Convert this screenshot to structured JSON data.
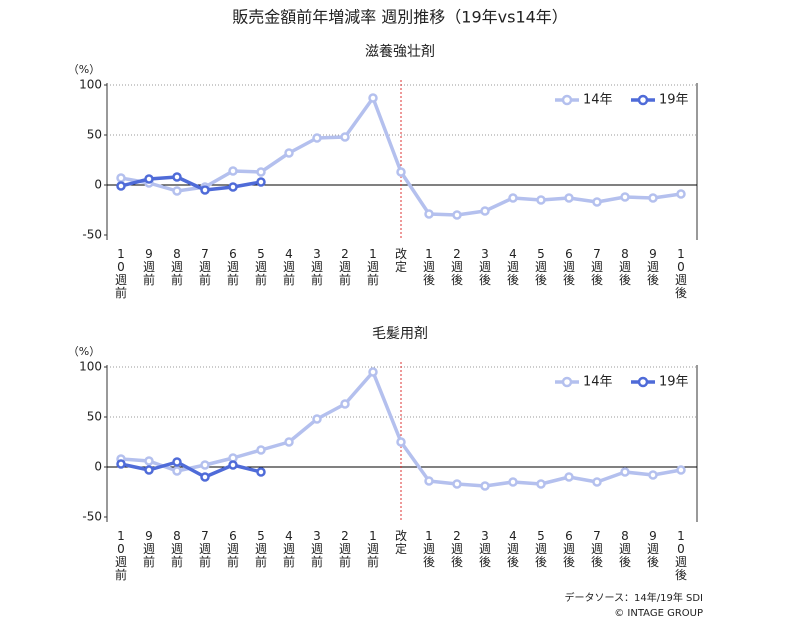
{
  "title": "販売金額前年増減率 週別推移（19年vs14年）",
  "source": "データソース：14年/19年 SDI",
  "copyright": "© INTAGE GROUP",
  "chart_data": [
    {
      "type": "line",
      "title": "滋養強壮剤",
      "ylabel": "（%）",
      "categories": [
        "10週前",
        "9週前",
        "8週前",
        "7週前",
        "6週前",
        "5週前",
        "4週前",
        "3週前",
        "2週前",
        "1週前",
        "改定",
        "1週後",
        "2週後",
        "3週後",
        "4週後",
        "5週後",
        "6週後",
        "7週後",
        "8週後",
        "9週後",
        "10週後"
      ],
      "ylim": [
        -55,
        100
      ],
      "yticks": [
        -50,
        0,
        50,
        100
      ],
      "grid": true,
      "legend": "top-right",
      "series": [
        {
          "name": "14年",
          "color": "#b4c0ee",
          "values": [
            7,
            2,
            -6,
            -2,
            14,
            13,
            32,
            47,
            48,
            87,
            13,
            -29,
            -30,
            -26,
            -13,
            -15,
            -13,
            -17,
            -12,
            -13,
            -9
          ]
        },
        {
          "name": "19年",
          "color": "#4f6bd8",
          "values": [
            -1,
            6,
            8,
            -5,
            -2,
            3,
            null,
            null,
            null,
            null,
            null,
            null,
            null,
            null,
            null,
            null,
            null,
            null,
            null,
            null,
            null
          ]
        }
      ]
    },
    {
      "type": "line",
      "title": "毛髪用剤",
      "ylabel": "（%）",
      "categories": [
        "10週前",
        "9週前",
        "8週前",
        "7週前",
        "6週前",
        "5週前",
        "4週前",
        "3週前",
        "2週前",
        "1週前",
        "改定",
        "1週後",
        "2週後",
        "3週後",
        "4週後",
        "5週後",
        "6週後",
        "7週後",
        "8週後",
        "9週後",
        "10週後"
      ],
      "ylim": [
        -55,
        100
      ],
      "yticks": [
        -50,
        0,
        50,
        100
      ],
      "grid": true,
      "legend": "top-right",
      "series": [
        {
          "name": "14年",
          "color": "#b4c0ee",
          "values": [
            8,
            6,
            -4,
            2,
            9,
            17,
            25,
            48,
            63,
            95,
            25,
            -14,
            -17,
            -19,
            -15,
            -17,
            -10,
            -15,
            -5,
            -8,
            -3
          ]
        },
        {
          "name": "19年",
          "color": "#4f6bd8",
          "values": [
            3,
            -3,
            5,
            -10,
            2,
            -5,
            null,
            null,
            null,
            null,
            null,
            null,
            null,
            null,
            null,
            null,
            null,
            null,
            null,
            null,
            null
          ]
        }
      ]
    }
  ]
}
